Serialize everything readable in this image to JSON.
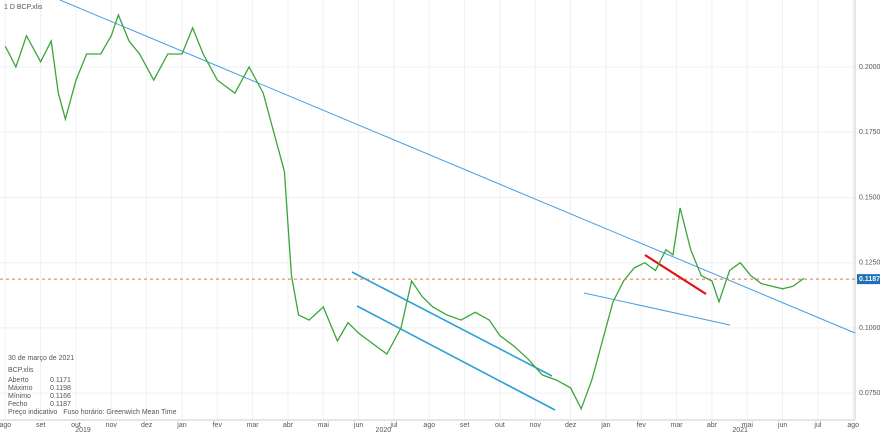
{
  "chart_data": {
    "type": "line",
    "title": "1 D   BCP.xlis",
    "xlim": [
      -0.15,
      24.05
    ],
    "ylim": [
      0.0647,
      0.2257
    ],
    "xticks": [
      {
        "value": 0,
        "label": "ago"
      },
      {
        "value": 1,
        "label": "set"
      },
      {
        "value": 2,
        "label": "out"
      },
      {
        "value": 3,
        "label": "nov"
      },
      {
        "value": 4,
        "label": "dez"
      },
      {
        "value": 5,
        "label": "jan"
      },
      {
        "value": 6,
        "label": "fev"
      },
      {
        "value": 7,
        "label": "mar"
      },
      {
        "value": 8,
        "label": "abr"
      },
      {
        "value": 9,
        "label": "mai"
      },
      {
        "value": 10,
        "label": "jun"
      },
      {
        "value": 11,
        "label": "jul"
      },
      {
        "value": 12,
        "label": "ago"
      },
      {
        "value": 13,
        "label": "set"
      },
      {
        "value": 14,
        "label": "out"
      },
      {
        "value": 15,
        "label": "nov"
      },
      {
        "value": 16,
        "label": "dez"
      },
      {
        "value": 17,
        "label": "jan"
      },
      {
        "value": 18,
        "label": "fev"
      },
      {
        "value": 19,
        "label": "mar"
      },
      {
        "value": 20,
        "label": "abr"
      },
      {
        "value": 21,
        "label": "mai"
      },
      {
        "value": 22,
        "label": "jun"
      },
      {
        "value": 23,
        "label": "jul"
      },
      {
        "value": 24,
        "label": "ago"
      }
    ],
    "year_ticks": [
      {
        "value": 2.2,
        "label": "2019"
      },
      {
        "value": 10.7,
        "label": "2020"
      },
      {
        "value": 20.8,
        "label": "2021"
      }
    ],
    "yticks": [
      {
        "value": 0.2,
        "label": "0.2000"
      },
      {
        "value": 0.175,
        "label": "0.1750"
      },
      {
        "value": 0.15,
        "label": "0.1500"
      },
      {
        "value": 0.125,
        "label": "0.1250"
      },
      {
        "value": 0.1,
        "label": "0.1000"
      },
      {
        "value": 0.075,
        "label": "0.0750"
      }
    ],
    "grid": true,
    "series": [
      {
        "name": "BCP.xlis",
        "color": "#3aa63a",
        "x": [
          0,
          0.3,
          0.6,
          1.0,
          1.3,
          1.5,
          1.7,
          2.0,
          2.3,
          2.7,
          3.0,
          3.2,
          3.5,
          3.8,
          4.2,
          4.6,
          5.0,
          5.3,
          5.6,
          6.0,
          6.5,
          6.9,
          7.3,
          7.6,
          7.9,
          8.0,
          8.1,
          8.3,
          8.6,
          9.0,
          9.4,
          9.7,
          10.0,
          10.4,
          10.8,
          11.2,
          11.5,
          11.8,
          12.1,
          12.5,
          12.9,
          13.3,
          13.7,
          14.0,
          14.4,
          14.8,
          15.2,
          15.6,
          16.0,
          16.3,
          16.6,
          16.9,
          17.2,
          17.5,
          17.8,
          18.1,
          18.4,
          18.7,
          18.9,
          19.1,
          19.4,
          19.7,
          20.0,
          20.2,
          20.5,
          20.8,
          21.1,
          21.4,
          21.7,
          22.0,
          22.3,
          22.6
        ],
        "values": [
          0.208,
          0.2,
          0.212,
          0.202,
          0.21,
          0.19,
          0.18,
          0.195,
          0.205,
          0.205,
          0.212,
          0.22,
          0.21,
          0.205,
          0.195,
          0.205,
          0.205,
          0.215,
          0.205,
          0.195,
          0.19,
          0.2,
          0.19,
          0.175,
          0.16,
          0.14,
          0.12,
          0.105,
          0.103,
          0.108,
          0.095,
          0.102,
          0.098,
          0.094,
          0.09,
          0.1,
          0.118,
          0.112,
          0.108,
          0.105,
          0.103,
          0.106,
          0.103,
          0.097,
          0.093,
          0.088,
          0.082,
          0.08,
          0.077,
          0.069,
          0.08,
          0.095,
          0.11,
          0.118,
          0.123,
          0.125,
          0.122,
          0.13,
          0.128,
          0.146,
          0.13,
          0.12,
          0.118,
          0.11,
          0.122,
          0.125,
          0.12,
          0.117,
          0.116,
          0.115,
          0.116,
          0.119
        ]
      }
    ],
    "last_price": 0.1187,
    "info": {
      "date": "30 de março de 2021",
      "symbol": "BCP.xlis",
      "rows": [
        {
          "label": "Aberto",
          "value": 0.1171
        },
        {
          "label": "Máximo",
          "value": 0.1198
        },
        {
          "label": "Mínimo",
          "value": 0.1166
        },
        {
          "label": "Fecho",
          "value": 0.1187
        }
      ],
      "footer": "Preço indicativo   Fuso horário: Greenwich Mean Time"
    }
  }
}
